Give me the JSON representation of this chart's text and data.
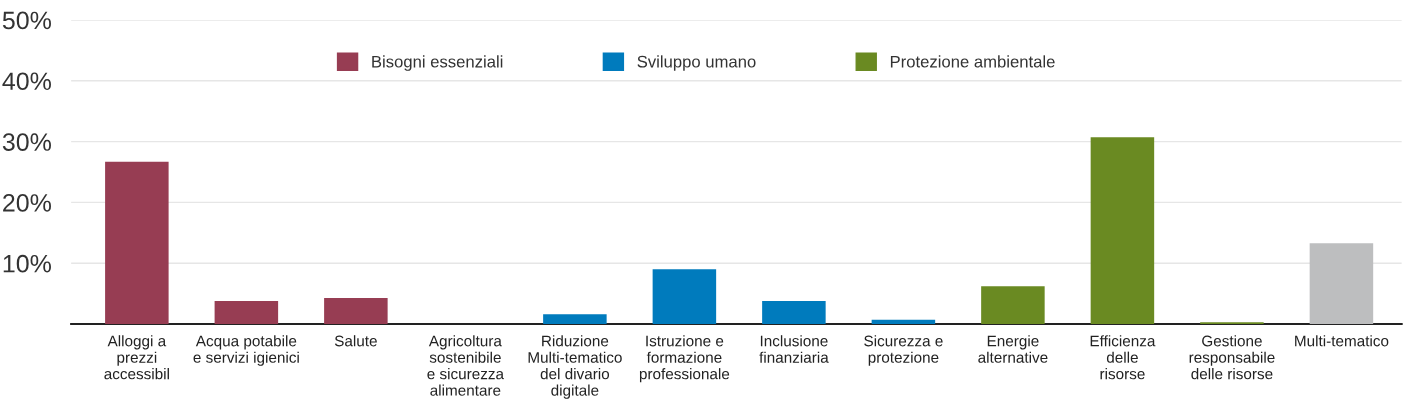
{
  "chart_data": {
    "type": "bar",
    "categories": [
      "Alloggi a\nprezzi\naccessibil",
      "Acqua potabile\ne servizi igienici",
      "Salute",
      "Agricoltura\nsostenibile\ne sicurezza\nalimentare",
      "Riduzione\nMulti-tematico\ndel divario\ndigitale",
      "Istruzione e\nformazione\nprofessionale",
      "Inclusione\nfinanziaria",
      "Sicurezza e\nprotezione",
      "Energie\nalternative",
      "Efficienza\ndelle\nrisorse",
      "Gestione\nresponsabile\ndelle risorse",
      "Multi-tematico"
    ],
    "series": [
      {
        "name": "Bisogni essenziali",
        "color": "#973d53",
        "values": [
          26.7,
          3.8,
          4.3,
          null,
          null,
          null,
          null,
          null,
          null,
          null,
          null,
          null
        ]
      },
      {
        "name": "Sviluppo umano",
        "color": "#007bbd",
        "values": [
          null,
          null,
          null,
          null,
          1.6,
          9.0,
          3.8,
          0.7,
          null,
          null,
          null,
          null
        ]
      },
      {
        "name": "Protezione ambientale",
        "color": "#6a8a22",
        "values": [
          null,
          null,
          null,
          null,
          null,
          null,
          null,
          null,
          6.2,
          30.7,
          0.3,
          null
        ]
      },
      {
        "color": "#bdbebf",
        "values": [
          null,
          null,
          null,
          null,
          null,
          null,
          null,
          null,
          null,
          null,
          null,
          13.3
        ]
      }
    ],
    "ylim": [
      0,
      50
    ],
    "yticks": [
      {
        "value": 10,
        "label": "10%"
      },
      {
        "value": 20,
        "label": "20%"
      },
      {
        "value": 30,
        "label": "30%"
      },
      {
        "value": 40,
        "label": "40%"
      },
      {
        "value": 50,
        "label": "50%"
      }
    ],
    "grid": "y",
    "legend": "top"
  }
}
